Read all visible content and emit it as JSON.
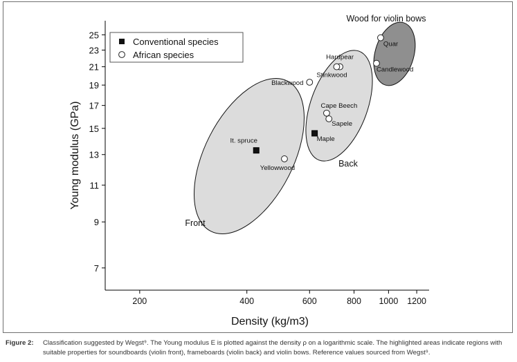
{
  "chart_data": {
    "type": "scatter",
    "x_scale": "log",
    "y_scale": "log",
    "xlabel": "Density (kg/m3)",
    "ylabel": "Young modulus (GPa)",
    "xlim": [
      160,
      1300
    ],
    "ylim": [
      6.2,
      27
    ],
    "x_ticks": [
      200,
      400,
      600,
      800,
      1000,
      1200
    ],
    "y_ticks": [
      7,
      9,
      11,
      13,
      15,
      17,
      19,
      21,
      23,
      25
    ],
    "grid": false,
    "legend_position": "top-left",
    "series": [
      {
        "name": "Conventional species",
        "marker": "filled-square",
        "points": [
          {
            "label": "It. spruce",
            "x": 425,
            "y": 13.3
          },
          {
            "label": "Maple",
            "x": 620,
            "y": 14.6
          }
        ]
      },
      {
        "name": "African species",
        "marker": "open-circle",
        "points": [
          {
            "label": "Yellowwood",
            "x": 510,
            "y": 12.7
          },
          {
            "label": "Blackwood",
            "x": 600,
            "y": 19.3
          },
          {
            "label": "Hardpear",
            "x": 730,
            "y": 21.0
          },
          {
            "label": "Stinkwood",
            "x": 715,
            "y": 21.0
          },
          {
            "label": "Cape Beech",
            "x": 670,
            "y": 16.3
          },
          {
            "label": "Sapele",
            "x": 680,
            "y": 15.8
          },
          {
            "label": "Quar",
            "x": 950,
            "y": 24.6
          },
          {
            "label": "Candlewood",
            "x": 925,
            "y": 21.4
          }
        ]
      }
    ],
    "regions": [
      {
        "label": "Front",
        "color": "#dcdcdc"
      },
      {
        "label": "Back",
        "color": "#dcdcdc"
      },
      {
        "label": "Wood for violin bows",
        "color": "#8f8f8f"
      }
    ],
    "caption_label": "Figure 2:",
    "caption": "Classification suggested by Wegst⁹. The Young modulus E is plotted against the density ρ on a logarithmic scale. The highlighted areas indicate regions with suitable properties for soundboards (violin front), frameboards (violin back) and violin bows. Reference values sourced from Wegst⁹."
  }
}
